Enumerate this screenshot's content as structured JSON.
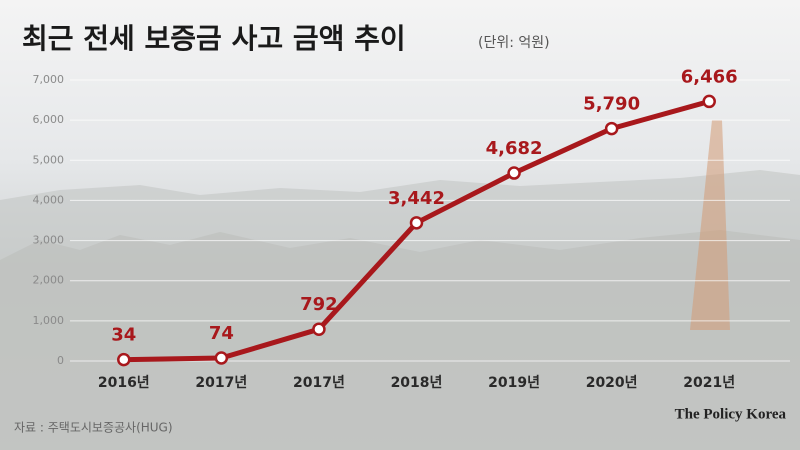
{
  "chart_data": {
    "type": "line",
    "title": "최근 전세 보증금 사고 금액 추이",
    "subtitle": "(단위: 억원)",
    "source": "자료 : 주택도시보증공사(HUG)",
    "brand": "The Policy Korea",
    "categories": [
      "2016년",
      "2017년",
      "2017년",
      "2018년",
      "2019년",
      "2020년",
      "2021년"
    ],
    "values": [
      34,
      74,
      792,
      3442,
      4682,
      5790,
      6466
    ],
    "value_labels": [
      "34",
      "74",
      "792",
      "3,442",
      "4,682",
      "5,790",
      "6,466"
    ],
    "color": "#a8181c",
    "ylim": [
      0,
      7000
    ],
    "yticks": [
      0,
      {
        "value": 1000,
        "label": "1,000"
      },
      {
        "value": 2000,
        "label": "2,000"
      },
      {
        "value": 3000,
        "label": "3,000"
      },
      {
        "value": 4000,
        "label": "4,000"
      },
      {
        "value": 5000,
        "label": "5,000"
      },
      {
        "value": 6000,
        "label": "6,000"
      },
      {
        "value": 7000,
        "label": "7,000"
      }
    ],
    "grid": true
  }
}
